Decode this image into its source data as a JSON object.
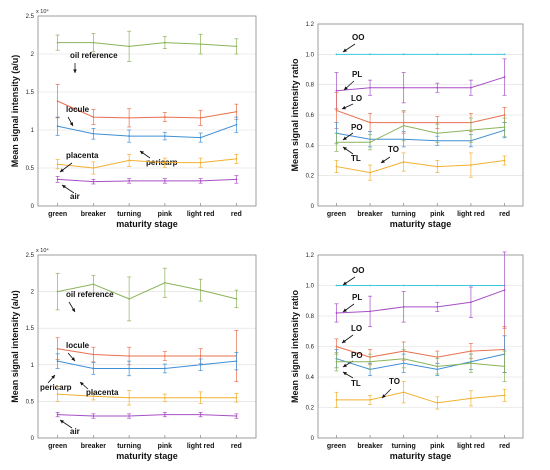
{
  "colors": {
    "green": "#8bb35a",
    "red": "#e8704e",
    "blue": "#3f8fd6",
    "orange": "#f2b030",
    "purple": "#a84fc6",
    "cyan": "#41c6e0",
    "grid": "#dddddd",
    "frame": "#888888"
  },
  "chart_data": [
    {
      "type": "line",
      "title": "",
      "xlabel": "maturity stage",
      "ylabel": "Mean signal intensity (a/u)",
      "y_exponent_label": "x 10⁴",
      "categories": [
        "green",
        "breaker",
        "turning",
        "pink",
        "light red",
        "red"
      ],
      "ylim": [
        0,
        2.5
      ],
      "yticks": [
        "0",
        "0.5",
        "1",
        "1.5",
        "2",
        "2.5"
      ],
      "grid": true,
      "series": [
        {
          "name": "oil reference",
          "color": "green",
          "values": [
            2.15,
            2.15,
            2.1,
            2.15,
            2.13,
            2.1
          ],
          "errors": [
            0.1,
            0.12,
            0.2,
            0.08,
            0.13,
            0.1
          ]
        },
        {
          "name": "locule",
          "color": "red",
          "values": [
            1.38,
            1.17,
            1.16,
            1.17,
            1.16,
            1.24
          ],
          "errors": [
            0.22,
            0.1,
            0.12,
            0.06,
            0.1,
            0.1
          ]
        },
        {
          "name": "pericarp",
          "color": "blue",
          "values": [
            1.05,
            0.95,
            0.92,
            0.92,
            0.9,
            1.07
          ],
          "errors": [
            0.12,
            0.07,
            0.08,
            0.05,
            0.06,
            0.1
          ]
        },
        {
          "name": "placenta",
          "color": "orange",
          "values": [
            0.55,
            0.5,
            0.6,
            0.57,
            0.57,
            0.62
          ],
          "errors": [
            0.06,
            0.08,
            0.08,
            0.06,
            0.06,
            0.06
          ]
        },
        {
          "name": "air",
          "color": "purple",
          "values": [
            0.35,
            0.32,
            0.33,
            0.33,
            0.33,
            0.35
          ],
          "errors": [
            0.04,
            0.03,
            0.03,
            0.03,
            0.03,
            0.05
          ]
        }
      ]
    },
    {
      "type": "line",
      "title": "",
      "xlabel": "maturity stage",
      "ylabel": "Mean signal intensity ratio",
      "categories": [
        "green",
        "breaker",
        "turning",
        "pink",
        "light red",
        "red"
      ],
      "ylim": [
        0,
        1.2
      ],
      "yticks": [
        "0",
        "0.2",
        "0.4",
        "0.6",
        "0.8",
        "1.0",
        "1.2"
      ],
      "grid": true,
      "series": [
        {
          "name": "OO",
          "color": "cyan",
          "values": [
            1.0,
            1.0,
            1.0,
            1.0,
            1.0,
            1.0
          ],
          "errors": [
            0,
            0,
            0,
            0,
            0,
            0
          ]
        },
        {
          "name": "PL",
          "color": "purple",
          "values": [
            0.76,
            0.78,
            0.78,
            0.78,
            0.78,
            0.85
          ],
          "errors": [
            0.12,
            0.05,
            0.1,
            0.03,
            0.05,
            0.12
          ]
        },
        {
          "name": "LO",
          "color": "red",
          "values": [
            0.63,
            0.55,
            0.55,
            0.55,
            0.55,
            0.6
          ],
          "errors": [
            0.12,
            0.06,
            0.07,
            0.04,
            0.06,
            0.05
          ]
        },
        {
          "name": "PO",
          "color": "blue",
          "values": [
            0.48,
            0.44,
            0.44,
            0.43,
            0.43,
            0.5
          ],
          "errors": [
            0.07,
            0.05,
            0.05,
            0.03,
            0.04,
            0.05
          ]
        },
        {
          "name": "TL",
          "color": "green",
          "values": [
            0.42,
            0.42,
            0.53,
            0.48,
            0.5,
            0.52
          ],
          "errors": [
            0.06,
            0.05,
            0.1,
            0.06,
            0.08,
            0.06
          ]
        },
        {
          "name": "TO",
          "color": "orange",
          "values": [
            0.26,
            0.22,
            0.29,
            0.26,
            0.27,
            0.3
          ],
          "errors": [
            0.04,
            0.05,
            0.06,
            0.04,
            0.08,
            0.03
          ]
        }
      ]
    },
    {
      "type": "line",
      "title": "",
      "xlabel": "maturity stage",
      "ylabel": "Mean signal intensity (a/u)",
      "y_exponent_label": "x 10⁴",
      "categories": [
        "green",
        "breaker",
        "turning",
        "pink",
        "light red",
        "red"
      ],
      "ylim": [
        0,
        2.5
      ],
      "yticks": [
        "0",
        "0.5",
        "1",
        "1.5",
        "2",
        "2.5"
      ],
      "grid": true,
      "series": [
        {
          "name": "oil reference",
          "color": "green",
          "values": [
            2.0,
            2.1,
            1.9,
            2.12,
            2.02,
            1.9
          ],
          "errors": [
            0.25,
            0.12,
            0.3,
            0.2,
            0.15,
            0.12
          ]
        },
        {
          "name": "locule",
          "color": "red",
          "values": [
            1.22,
            1.14,
            1.12,
            1.12,
            1.12,
            1.12
          ],
          "errors": [
            0.15,
            0.1,
            0.12,
            0.06,
            0.1,
            0.35
          ]
        },
        {
          "name": "pericarp",
          "color": "blue",
          "values": [
            1.05,
            0.95,
            0.95,
            0.95,
            1.0,
            1.05
          ],
          "errors": [
            0.1,
            0.08,
            0.1,
            0.06,
            0.08,
            0.12
          ]
        },
        {
          "name": "placenta",
          "color": "orange",
          "values": [
            0.6,
            0.57,
            0.55,
            0.55,
            0.55,
            0.55
          ],
          "errors": [
            0.1,
            0.05,
            0.1,
            0.05,
            0.08,
            0.06
          ]
        },
        {
          "name": "air",
          "color": "purple",
          "values": [
            0.32,
            0.3,
            0.3,
            0.32,
            0.32,
            0.3
          ],
          "errors": [
            0.03,
            0.03,
            0.03,
            0.03,
            0.03,
            0.03
          ]
        }
      ]
    },
    {
      "type": "line",
      "title": "",
      "xlabel": "maturity stage",
      "ylabel": "Mean signal intensity ratio",
      "categories": [
        "green",
        "breaker",
        "turning",
        "pink",
        "light red",
        "red"
      ],
      "ylim": [
        0,
        1.2
      ],
      "yticks": [
        "0",
        "0.2",
        "0.4",
        "0.6",
        "0.8",
        "1.0",
        "1.2"
      ],
      "grid": true,
      "series": [
        {
          "name": "OO",
          "color": "cyan",
          "values": [
            1.0,
            1.0,
            1.0,
            1.0,
            1.0,
            1.0
          ],
          "errors": [
            0,
            0,
            0,
            0,
            0,
            0
          ]
        },
        {
          "name": "PL",
          "color": "purple",
          "values": [
            0.82,
            0.83,
            0.86,
            0.86,
            0.89,
            0.97
          ],
          "errors": [
            0.06,
            0.1,
            0.1,
            0.03,
            0.1,
            0.25
          ]
        },
        {
          "name": "LO",
          "color": "red",
          "values": [
            0.6,
            0.53,
            0.57,
            0.53,
            0.57,
            0.58
          ],
          "errors": [
            0.05,
            0.05,
            0.06,
            0.04,
            0.05,
            0.15
          ]
        },
        {
          "name": "PO",
          "color": "blue",
          "values": [
            0.52,
            0.45,
            0.49,
            0.45,
            0.5,
            0.55
          ],
          "errors": [
            0.06,
            0.04,
            0.06,
            0.04,
            0.05,
            0.12
          ]
        },
        {
          "name": "TL",
          "color": "green",
          "values": [
            0.5,
            0.5,
            0.52,
            0.47,
            0.49,
            0.47
          ],
          "errors": [
            0.06,
            0.05,
            0.06,
            0.05,
            0.06,
            0.1
          ]
        },
        {
          "name": "TO",
          "color": "orange",
          "values": [
            0.25,
            0.25,
            0.3,
            0.23,
            0.26,
            0.28
          ],
          "errors": [
            0.05,
            0.03,
            0.07,
            0.04,
            0.05,
            0.04
          ]
        }
      ]
    }
  ]
}
